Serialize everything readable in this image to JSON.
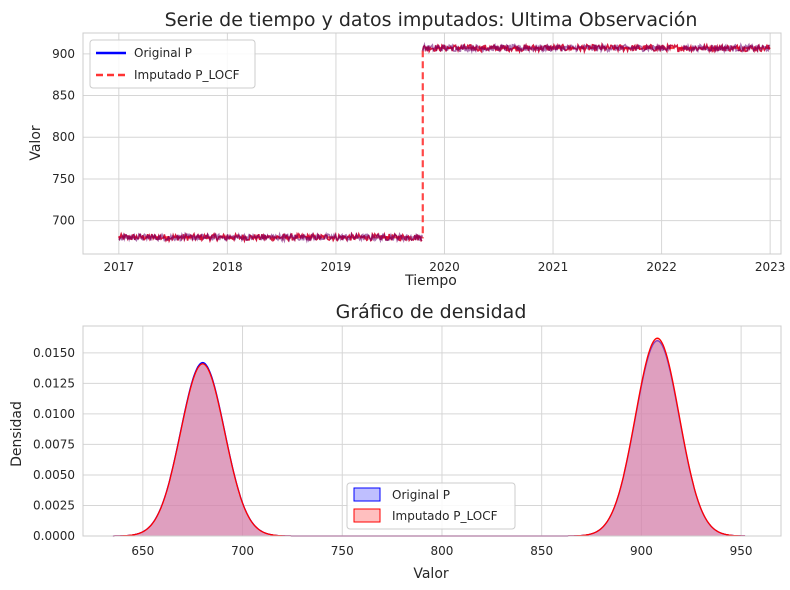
{
  "chart_data": [
    {
      "type": "line",
      "title": "Serie de tiempo y datos imputados: Ultima Observación",
      "xlabel": "Tiempo",
      "ylabel": "Valor",
      "xlim": [
        2016.67,
        2023.1
      ],
      "ylim": [
        660,
        925
      ],
      "xticks": [
        "2017",
        "2018",
        "2019",
        "2020",
        "2021",
        "2022",
        "2023"
      ],
      "yticks": [
        700,
        750,
        800,
        850,
        900
      ],
      "grid": true,
      "legend_position": "top-left",
      "series": [
        {
          "name": "Original P",
          "color": "#0000ff",
          "style": "solid",
          "segments": [
            {
              "x_start": 2017.0,
              "x_end": 2019.8,
              "level": 680,
              "noise": 4
            },
            {
              "x_start": 2019.8,
              "x_end": 2022.08,
              "level": 907,
              "noise": 4
            },
            {
              "x_start": 2022.2,
              "x_end": 2023.0,
              "level": 907,
              "noise": 4
            }
          ]
        },
        {
          "name": "Imputado P_LOCF",
          "color": "#ff3333",
          "style": "dashed",
          "segments": [
            {
              "x_start": 2017.0,
              "x_end": 2019.8,
              "level": 680,
              "noise": 4
            },
            {
              "x_start": 2019.8,
              "x_end": 2023.0,
              "level": 907,
              "noise": 4
            }
          ]
        }
      ]
    },
    {
      "type": "area",
      "title": "Gráfico de densidad",
      "xlabel": "Valor",
      "ylabel": "Densidad",
      "xlim": [
        620,
        970
      ],
      "ylim": [
        0,
        0.0172
      ],
      "xticks": [
        650,
        700,
        750,
        800,
        850,
        900,
        950
      ],
      "yticks": [
        "0.0000",
        "0.0025",
        "0.0050",
        "0.0075",
        "0.0100",
        "0.0125",
        "0.0150"
      ],
      "grid": true,
      "legend_position": "lower-center",
      "x_range": [
        635,
        952
      ],
      "series": [
        {
          "name": "Original P",
          "color": "#0000ff",
          "fill": "#8080ff",
          "peaks": [
            {
              "center": 680,
              "height": 0.0142,
              "sd": 11
            },
            {
              "center": 908,
              "height": 0.016,
              "sd": 11
            }
          ]
        },
        {
          "name": "Imputado P_LOCF",
          "color": "#ff0000",
          "fill": "#ff8080",
          "peaks": [
            {
              "center": 680,
              "height": 0.0141,
              "sd": 11
            },
            {
              "center": 908,
              "height": 0.0162,
              "sd": 11
            }
          ]
        }
      ]
    }
  ]
}
